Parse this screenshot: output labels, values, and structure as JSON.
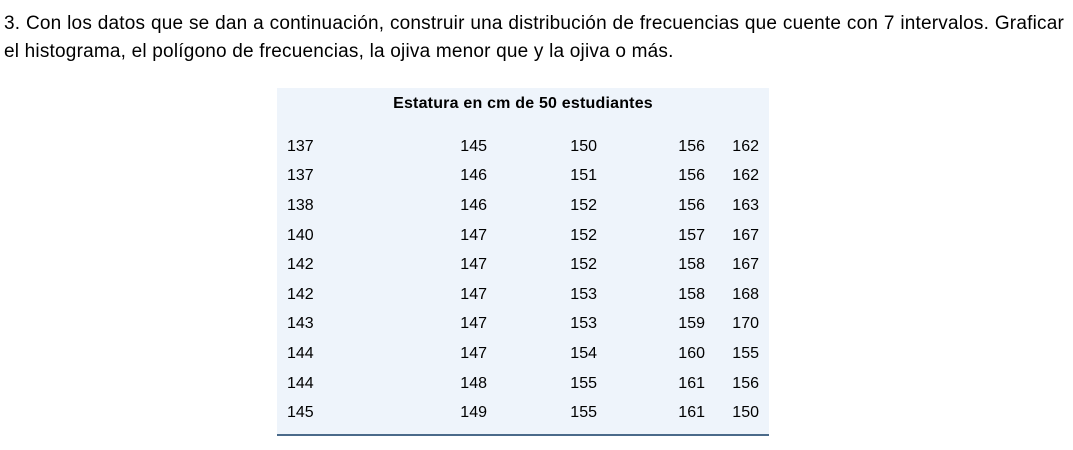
{
  "problem": {
    "text": "3. Con los datos que se dan a continuación, construir una distribución de frecuencias que cuente con 7 intervalos. Graficar el histograma, el polígono de frecuencias, la ojiva menor que y la ojiva o más."
  },
  "table": {
    "title": "Estatura en cm de 50 estudiantes",
    "rows": [
      [
        "137",
        "145",
        "150",
        "156",
        "162"
      ],
      [
        "137",
        "146",
        "151",
        "156",
        "162"
      ],
      [
        "138",
        "146",
        "152",
        "156",
        "163"
      ],
      [
        "140",
        "147",
        "152",
        "157",
        "167"
      ],
      [
        "142",
        "147",
        "152",
        "158",
        "167"
      ],
      [
        "142",
        "147",
        "153",
        "158",
        "168"
      ],
      [
        "143",
        "147",
        "153",
        "159",
        "170"
      ],
      [
        "144",
        "147",
        "154",
        "160",
        "155"
      ],
      [
        "144",
        "148",
        "155",
        "161",
        "156"
      ],
      [
        "145",
        "149",
        "155",
        "161",
        "150"
      ]
    ]
  }
}
